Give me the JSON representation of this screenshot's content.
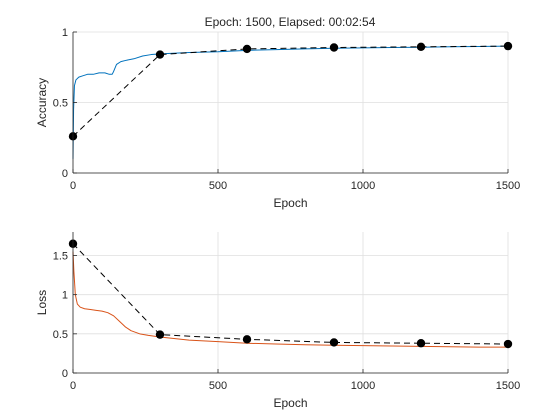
{
  "title": "Epoch: 1500, Elapsed: 00:02:54",
  "colors": {
    "training_accuracy": "#0072BD",
    "training_loss": "#D95319",
    "validation": "#000000"
  },
  "chart_data": [
    {
      "type": "line",
      "title": "Epoch: 1500, Elapsed: 00:02:54",
      "xlabel": "Epoch",
      "ylabel": "Accuracy",
      "xlim": [
        0,
        1500
      ],
      "ylim": [
        0,
        1
      ],
      "xticks": [
        0,
        500,
        1000,
        1500
      ],
      "xtick_labels": [
        "0",
        "500",
        "1000",
        "1500"
      ],
      "yticks": [
        0,
        0.5,
        1
      ],
      "ytick_labels": [
        "0",
        "0.5",
        "1"
      ],
      "grid": true,
      "series": [
        {
          "style": "solid",
          "color": "#0072BD",
          "x": [
            0,
            2,
            5,
            10,
            20,
            35,
            50,
            70,
            90,
            110,
            125,
            135,
            140,
            150,
            165,
            185,
            210,
            240,
            270,
            300,
            400,
            500,
            600,
            700,
            800,
            900,
            1000,
            1100,
            1200,
            1300,
            1400,
            1500
          ],
          "y": [
            0.1,
            0.45,
            0.62,
            0.66,
            0.68,
            0.69,
            0.7,
            0.7,
            0.71,
            0.71,
            0.7,
            0.7,
            0.72,
            0.77,
            0.79,
            0.8,
            0.81,
            0.83,
            0.84,
            0.845,
            0.855,
            0.86,
            0.87,
            0.875,
            0.88,
            0.885,
            0.887,
            0.89,
            0.892,
            0.895,
            0.897,
            0.9
          ]
        },
        {
          "style": "dashed-markers",
          "color": "#000000",
          "x": [
            0,
            300,
            600,
            900,
            1200,
            1500
          ],
          "y": [
            0.26,
            0.84,
            0.88,
            0.89,
            0.895,
            0.9
          ]
        }
      ]
    },
    {
      "type": "line",
      "title": "",
      "xlabel": "Epoch",
      "ylabel": "Loss",
      "xlim": [
        0,
        1500
      ],
      "ylim": [
        0,
        1.8
      ],
      "xticks": [
        0,
        500,
        1000,
        1500
      ],
      "xtick_labels": [
        "0",
        "500",
        "1000",
        "1500"
      ],
      "yticks": [
        0,
        0.5,
        1,
        1.5
      ],
      "ytick_labels": [
        "0",
        "0.5",
        "1",
        "1.5"
      ],
      "grid": true,
      "series": [
        {
          "style": "solid",
          "color": "#D95319",
          "x": [
            0,
            3,
            8,
            15,
            25,
            40,
            60,
            80,
            100,
            120,
            140,
            160,
            180,
            200,
            230,
            260,
            300,
            400,
            500,
            600,
            700,
            800,
            900,
            1000,
            1100,
            1200,
            1300,
            1400,
            1500
          ],
          "y": [
            1.55,
            1.3,
            1.0,
            0.88,
            0.84,
            0.82,
            0.81,
            0.8,
            0.79,
            0.77,
            0.73,
            0.66,
            0.59,
            0.54,
            0.5,
            0.48,
            0.46,
            0.42,
            0.4,
            0.38,
            0.37,
            0.36,
            0.355,
            0.35,
            0.345,
            0.34,
            0.335,
            0.33,
            0.33
          ]
        },
        {
          "style": "dashed-markers",
          "color": "#000000",
          "x": [
            0,
            300,
            600,
            900,
            1200,
            1500
          ],
          "y": [
            1.65,
            0.49,
            0.43,
            0.39,
            0.38,
            0.37
          ]
        }
      ]
    }
  ]
}
